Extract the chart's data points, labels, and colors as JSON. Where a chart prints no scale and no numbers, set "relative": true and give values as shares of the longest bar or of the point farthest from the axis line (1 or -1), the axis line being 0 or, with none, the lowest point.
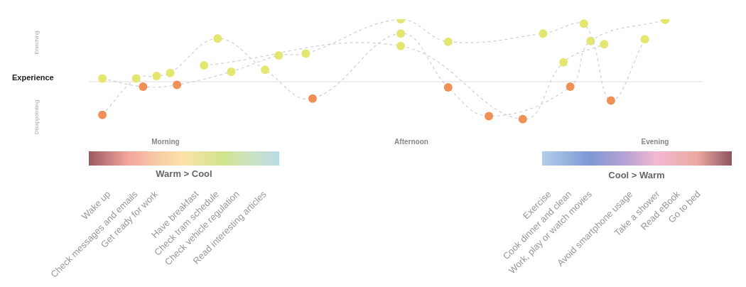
{
  "chart_data": {
    "type": "line",
    "relative": true,
    "ylabel": "Experience",
    "marker": "circle",
    "line_style": "dashed",
    "annotations": [
      "Enriching",
      "Disappointing",
      "Morning",
      "Afternoon",
      "Evening",
      "Warm > Cool",
      "Cool > Warm"
    ],
    "categories": [
      null,
      null,
      null,
      "Wake up",
      null,
      null,
      null,
      "Check messages and emails",
      null,
      null,
      "Get ready for work",
      null,
      null,
      null,
      null,
      null,
      "Have breakfast",
      null,
      null,
      "Check tram schedule",
      null,
      null,
      "Check vehicle regulation",
      null,
      null,
      null,
      "Read interesting articles",
      null,
      null,
      null,
      null,
      null,
      null,
      null,
      null,
      null,
      null,
      null,
      null,
      null,
      null,
      null,
      null,
      null,
      null,
      null,
      null,
      null,
      null,
      null,
      null,
      null,
      null,
      null,
      null,
      null,
      null,
      null,
      null,
      null,
      null,
      null,
      null,
      null,
      null,
      null,
      null,
      null,
      "Exercise",
      null,
      null,
      "Cook dinner and clean",
      null,
      null,
      "Work, play or watch movies",
      null,
      null,
      null,
      null,
      null,
      "Avoid smartphone usage",
      null,
      null,
      null,
      "Take a shower",
      null,
      null,
      "Read eBook",
      null,
      null,
      "Go to bed"
    ],
    "series": [
      {
        "color": "#cfcfcf",
        "values": [
          null,
          null,
          0.05,
          null,
          null,
          null,
          null,
          null,
          -0.08,
          null,
          null,
          null,
          null,
          -0.05,
          null,
          null,
          null,
          null,
          null,
          null,
          null,
          0.16,
          null,
          null,
          null,
          null,
          null,
          null,
          0.42,
          null,
          null,
          null,
          0.45,
          null,
          null,
          null,
          null,
          null,
          null,
          null,
          null,
          null,
          null,
          null,
          null,
          null,
          1,
          null,
          null,
          null,
          null,
          null,
          null,
          0.64,
          null,
          null,
          null,
          null,
          null,
          null,
          null,
          null,
          null,
          null,
          null,
          null,
          null,
          0.77,
          null,
          null,
          null,
          null,
          null,
          0.93,
          null,
          null,
          null,
          -0.3,
          null,
          null,
          null,
          null,
          0.68,
          null,
          null,
          null,
          null,
          null,
          null,
          null,
          null
        ],
        "colors": [
          null,
          null,
          "#e3e66f",
          null,
          null,
          null,
          null,
          null,
          "#ef9058",
          null,
          null,
          null,
          null,
          "#ef9058",
          null,
          null,
          null,
          null,
          null,
          null,
          null,
          "#e3e66f",
          null,
          null,
          null,
          null,
          null,
          null,
          "#e3e66f",
          null,
          null,
          null,
          "#e3e66f",
          null,
          null,
          null,
          null,
          null,
          null,
          null,
          null,
          null,
          null,
          null,
          null,
          null,
          "#e3e66f",
          null,
          null,
          null,
          null,
          null,
          null,
          "#e3e66f",
          null,
          null,
          null,
          null,
          null,
          null,
          null,
          null,
          null,
          null,
          null,
          null,
          null,
          "#e3e66f",
          null,
          null,
          null,
          null,
          null,
          "#e3e66f",
          null,
          null,
          null,
          "#ef9058",
          null,
          null,
          null,
          null,
          "#e3e66f",
          null,
          null,
          null,
          null,
          null,
          null,
          null,
          null
        ]
      },
      {
        "color": "#cfcfcf",
        "values": [
          null,
          null,
          -0.53,
          null,
          null,
          null,
          null,
          0.05,
          null,
          null,
          0.09,
          null,
          0.14,
          null,
          null,
          null,
          null,
          null,
          null,
          0.69,
          null,
          null,
          null,
          null,
          null,
          null,
          0.19,
          null,
          null,
          null,
          null,
          null,
          null,
          -0.27,
          null,
          null,
          null,
          null,
          null,
          null,
          null,
          null,
          null,
          null,
          null,
          null,
          0.77,
          null,
          null,
          null,
          null,
          null,
          null,
          -0.09,
          null,
          null,
          null,
          null,
          null,
          -0.55,
          null,
          null,
          null,
          null,
          null,
          null,
          null,
          null,
          null,
          null,
          null,
          -0.08,
          null,
          null,
          0.65,
          null,
          null,
          null,
          null,
          null,
          null,
          null,
          null,
          null,
          null,
          0.99,
          null,
          null,
          null,
          null,
          null
        ],
        "colors": [
          null,
          null,
          "#ef9058",
          null,
          null,
          null,
          null,
          "#e3e66f",
          null,
          null,
          "#e3e66f",
          null,
          "#e3e66f",
          null,
          null,
          null,
          null,
          null,
          null,
          "#e3e66f",
          null,
          null,
          null,
          null,
          null,
          null,
          "#e3e66f",
          null,
          null,
          null,
          null,
          null,
          null,
          "#ef9058",
          null,
          null,
          null,
          null,
          null,
          null,
          null,
          null,
          null,
          null,
          null,
          null,
          "#e3e66f",
          null,
          null,
          null,
          null,
          null,
          null,
          "#ef9058",
          null,
          null,
          null,
          null,
          null,
          "#ef9058",
          null,
          null,
          null,
          null,
          null,
          null,
          null,
          null,
          null,
          null,
          null,
          "#ef9058",
          null,
          null,
          "#e3e66f",
          null,
          null,
          null,
          null,
          null,
          null,
          null,
          null,
          null,
          null,
          "#e3e66f",
          null,
          null,
          null,
          null,
          null
        ]
      },
      {
        "color": "#cfcfcf",
        "values": [
          null,
          null,
          null,
          null,
          null,
          null,
          null,
          null,
          null,
          null,
          null,
          null,
          null,
          null,
          null,
          null,
          null,
          0.26,
          null,
          null,
          null,
          null,
          null,
          null,
          null,
          null,
          null,
          null,
          null,
          null,
          null,
          null,
          null,
          null,
          null,
          null,
          null,
          null,
          null,
          null,
          null,
          null,
          null,
          null,
          null,
          null,
          0.57,
          null,
          null,
          null,
          null,
          null,
          null,
          null,
          null,
          null,
          null,
          null,
          null,
          null,
          null,
          null,
          null,
          null,
          -0.6,
          null,
          null,
          null,
          null,
          null,
          0.31,
          null,
          null,
          null,
          null,
          null,
          0.6,
          null,
          null,
          null,
          null,
          null,
          null,
          null,
          null,
          null,
          null,
          null,
          null,
          null,
          null
        ],
        "colors": [
          null,
          null,
          null,
          null,
          null,
          null,
          null,
          null,
          null,
          null,
          null,
          null,
          null,
          null,
          null,
          null,
          null,
          "#e3e66f",
          null,
          null,
          null,
          null,
          null,
          null,
          null,
          null,
          null,
          null,
          null,
          null,
          null,
          null,
          null,
          null,
          null,
          null,
          null,
          null,
          null,
          null,
          null,
          null,
          null,
          null,
          null,
          null,
          "#e3e66f",
          null,
          null,
          null,
          null,
          null,
          null,
          null,
          null,
          null,
          null,
          null,
          null,
          null,
          null,
          null,
          null,
          null,
          "#ef9058",
          null,
          null,
          null,
          null,
          null,
          "#e3e66f",
          null,
          null,
          null,
          null,
          null,
          "#e3e66f",
          null,
          null,
          null,
          null,
          null,
          null,
          null,
          null,
          null,
          null,
          null,
          null,
          null,
          null
        ]
      }
    ]
  }
}
